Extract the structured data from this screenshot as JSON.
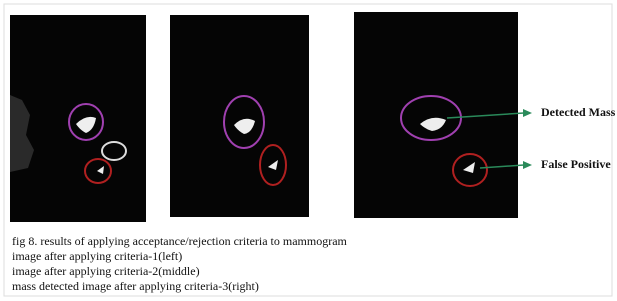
{
  "annotations": {
    "detected_mass": "Detected Mass",
    "false_positive": "False Positive"
  },
  "caption": [
    "fig 8. results of applying acceptance/rejection criteria to mammogram",
    "image after applying criteria-1(left)",
    "image after applying criteria-2(middle)",
    "mass detected image after applying criteria-3(right)"
  ]
}
